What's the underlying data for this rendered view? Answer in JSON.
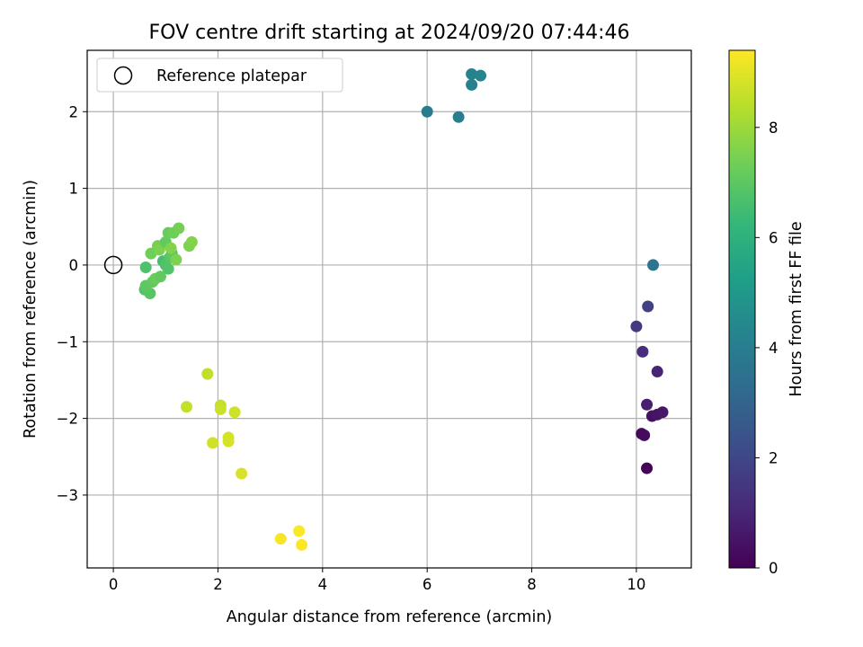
{
  "chart_data": {
    "type": "scatter",
    "title": "FOV centre drift starting at 2024/09/20 07:44:46",
    "xlabel": "Angular distance from reference (arcmin)",
    "ylabel": "Rotation from reference (arcmin)",
    "xlim": [
      -0.5,
      11.05
    ],
    "ylim": [
      -3.95,
      2.8
    ],
    "xticks": [
      0,
      2,
      4,
      6,
      8,
      10
    ],
    "xtick_labels": [
      "0",
      "2",
      "4",
      "6",
      "8",
      "10"
    ],
    "yticks": [
      2,
      1,
      0,
      -1,
      -2,
      -3
    ],
    "ytick_labels": [
      "2",
      "1",
      "0",
      "−1",
      "−2",
      "−3"
    ],
    "grid": true,
    "legend": {
      "position": "upper-left",
      "entries": [
        "Reference platepar"
      ]
    },
    "reference_point": {
      "x": 0,
      "y": 0,
      "marker": "open-circle"
    },
    "colorbar": {
      "label": "Hours from first FF file",
      "min": 0,
      "max": 9.4,
      "ticks": [
        0,
        2,
        4,
        6,
        8
      ],
      "tick_labels": [
        "0",
        "2",
        "4",
        "6",
        "8"
      ],
      "colormap": "viridis"
    },
    "points": [
      {
        "x": 10.2,
        "y": -2.65,
        "h": 0.1
      },
      {
        "x": 10.1,
        "y": -2.2,
        "h": 0.2
      },
      {
        "x": 10.15,
        "y": -2.22,
        "h": 0.3
      },
      {
        "x": 10.3,
        "y": -1.97,
        "h": 0.4
      },
      {
        "x": 10.4,
        "y": -1.95,
        "h": 0.5
      },
      {
        "x": 10.5,
        "y": -1.92,
        "h": 0.6
      },
      {
        "x": 10.2,
        "y": -1.82,
        "h": 0.8
      },
      {
        "x": 10.4,
        "y": -1.39,
        "h": 1.0
      },
      {
        "x": 10.12,
        "y": -1.13,
        "h": 1.2
      },
      {
        "x": 10.0,
        "y": -0.8,
        "h": 1.6
      },
      {
        "x": 10.22,
        "y": -0.54,
        "h": 1.8
      },
      {
        "x": 10.32,
        "y": 0.0,
        "h": 3.7
      },
      {
        "x": 6.0,
        "y": 2.0,
        "h": 3.9
      },
      {
        "x": 6.6,
        "y": 1.93,
        "h": 4.0
      },
      {
        "x": 6.85,
        "y": 2.35,
        "h": 4.1
      },
      {
        "x": 6.85,
        "y": 2.49,
        "h": 4.2
      },
      {
        "x": 7.02,
        "y": 2.47,
        "h": 4.3
      },
      {
        "x": 0.62,
        "y": -0.03,
        "h": 6.7
      },
      {
        "x": 0.6,
        "y": -0.32,
        "h": 6.8
      },
      {
        "x": 0.7,
        "y": -0.37,
        "h": 6.9
      },
      {
        "x": 0.62,
        "y": -0.27,
        "h": 7.0
      },
      {
        "x": 0.75,
        "y": -0.22,
        "h": 7.1
      },
      {
        "x": 0.8,
        "y": -0.18,
        "h": 7.2
      },
      {
        "x": 0.72,
        "y": 0.15,
        "h": 7.3
      },
      {
        "x": 0.85,
        "y": 0.25,
        "h": 7.4
      },
      {
        "x": 0.88,
        "y": 0.2,
        "h": 7.5
      },
      {
        "x": 0.95,
        "y": 0.05,
        "h": 6.6
      },
      {
        "x": 1.0,
        "y": 0.0,
        "h": 6.7
      },
      {
        "x": 1.05,
        "y": -0.05,
        "h": 6.8
      },
      {
        "x": 1.08,
        "y": 0.1,
        "h": 6.9
      },
      {
        "x": 1.12,
        "y": 0.15,
        "h": 7.0
      },
      {
        "x": 1.0,
        "y": 0.3,
        "h": 7.1
      },
      {
        "x": 1.05,
        "y": 0.42,
        "h": 7.2
      },
      {
        "x": 1.15,
        "y": 0.42,
        "h": 7.3
      },
      {
        "x": 1.25,
        "y": 0.48,
        "h": 7.4
      },
      {
        "x": 1.2,
        "y": 0.07,
        "h": 7.5
      },
      {
        "x": 1.1,
        "y": 0.22,
        "h": 7.6
      },
      {
        "x": 0.9,
        "y": -0.15,
        "h": 7.1
      },
      {
        "x": 1.45,
        "y": 0.25,
        "h": 7.5
      },
      {
        "x": 1.5,
        "y": 0.3,
        "h": 7.6
      },
      {
        "x": 1.8,
        "y": -1.42,
        "h": 8.5
      },
      {
        "x": 1.4,
        "y": -1.85,
        "h": 8.55
      },
      {
        "x": 2.05,
        "y": -1.83,
        "h": 8.6
      },
      {
        "x": 2.05,
        "y": -1.88,
        "h": 8.65
      },
      {
        "x": 2.32,
        "y": -1.92,
        "h": 8.7
      },
      {
        "x": 1.9,
        "y": -2.32,
        "h": 8.75
      },
      {
        "x": 2.2,
        "y": -2.25,
        "h": 8.8
      },
      {
        "x": 2.2,
        "y": -2.3,
        "h": 8.82
      },
      {
        "x": 2.45,
        "y": -2.72,
        "h": 8.85
      },
      {
        "x": 3.2,
        "y": -3.57,
        "h": 9.3
      },
      {
        "x": 3.55,
        "y": -3.47,
        "h": 9.35
      },
      {
        "x": 3.6,
        "y": -3.65,
        "h": 9.4
      }
    ]
  }
}
